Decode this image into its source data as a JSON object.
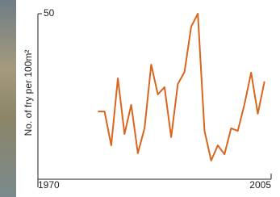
{
  "chart_data": {
    "type": "line",
    "ylabel": "No. of fry per 100m²",
    "x": [
      1979,
      1980,
      1981,
      1982,
      1983,
      1984,
      1985,
      1986,
      1987,
      1988,
      1989,
      1990,
      1991,
      1992,
      1993,
      1994,
      1995,
      1996,
      1997,
      1998,
      1999,
      2000,
      2001,
      2002,
      2003,
      2004
    ],
    "series": [
      {
        "color": "#d9661f",
        "values": [
          19.1,
          19.1,
          8.4,
          29.6,
          12.0,
          21.2,
          5.9,
          13.8,
          33.9,
          24.5,
          26.8,
          11.0,
          27.8,
          31.6,
          45.9,
          50,
          13.0,
          3.6,
          8.4,
          5.6,
          13.8,
          13.0,
          21.4,
          31.4,
          18.4,
          28.6
        ]
      }
    ],
    "xlim": [
      1970,
      2005
    ],
    "xticks": [
      1970,
      2005
    ],
    "ylim": [
      0,
      50
    ],
    "yticks": [
      50
    ]
  }
}
